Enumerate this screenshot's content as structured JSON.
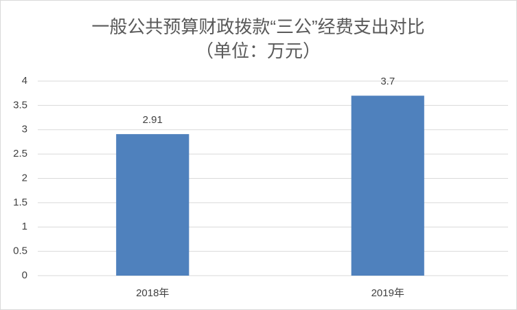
{
  "chart_data": {
    "type": "bar",
    "title": "一般公共预算财政拨款“三公”经费支出对比",
    "subtitle": "（单位：万元）",
    "categories": [
      "2018年",
      "2019年"
    ],
    "values": [
      2.91,
      3.7
    ],
    "color": "#4f81bd",
    "ylim": [
      0,
      4
    ],
    "yticks": [
      0,
      0.5,
      1,
      1.5,
      2,
      2.5,
      3,
      3.5,
      4
    ],
    "grid": true
  }
}
